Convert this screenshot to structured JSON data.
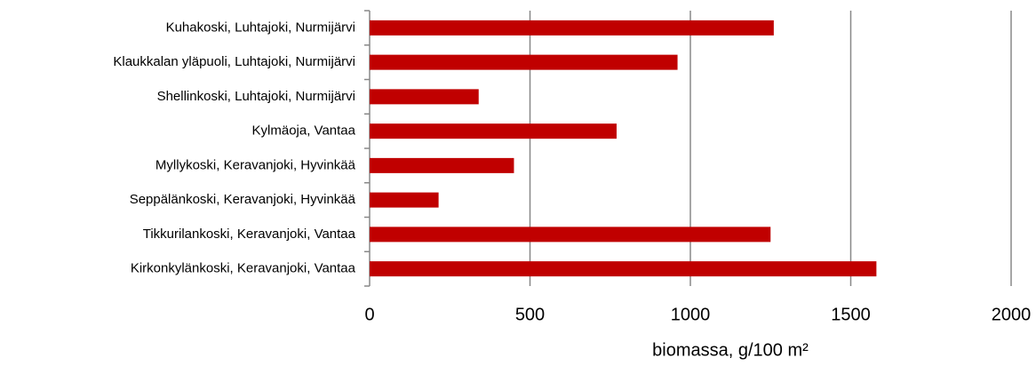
{
  "chart_data": {
    "type": "bar",
    "orientation": "horizontal",
    "x_label": "biomassa, g/100 m²",
    "categories": [
      "Kuhakoski, Luhtajoki, Nurmijärvi",
      "Klaukkalan yläpuoli, Luhtajoki, Nurmijärvi",
      "Shellinkoski, Luhtajoki, Nurmijärvi",
      "Kylmäoja, Vantaa",
      "Myllykoski, Keravanjoki, Hyvinkää",
      "Seppälänkoski, Keravanjoki, Hyvinkää",
      "Tikkurilankoski, Keravanjoki, Vantaa",
      "Kirkonkylänkoski, Keravanjoki, Vantaa"
    ],
    "values": [
      1260,
      960,
      340,
      770,
      450,
      215,
      1250,
      1580
    ],
    "color": "#c00000",
    "xlim": [
      0,
      2000
    ],
    "xticks": [
      0,
      500,
      1000,
      1500,
      2000
    ],
    "grid": true
  }
}
